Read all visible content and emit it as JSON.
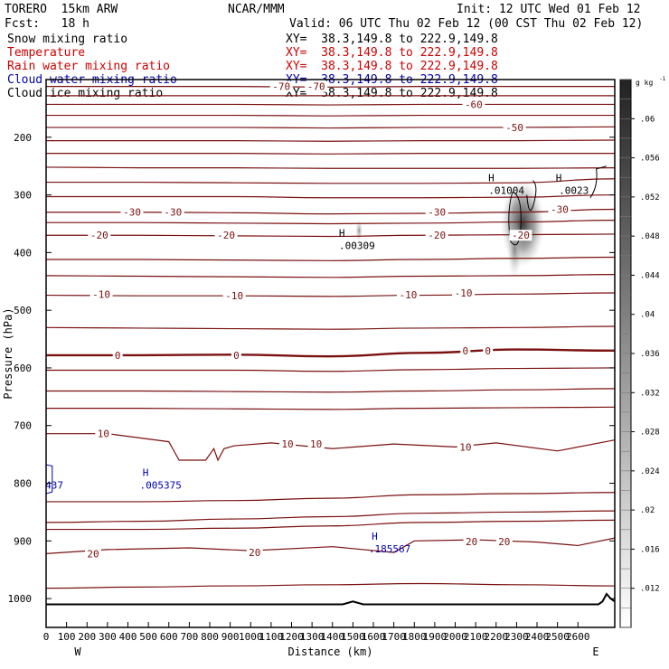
{
  "header": {
    "title": "TORERO  15km ARW",
    "org": "NCAR/MMM",
    "init": "Init: 12 UTC Wed 01 Feb 12",
    "fcst": "Fcst:   18 h",
    "valid": "Valid: 06 UTC Thu 02 Feb 12 (00 CST Thu 02 Feb 12)",
    "fields": [
      {
        "name": "Snow mixing ratio",
        "color": "#000000",
        "xy": "XY=  38.3,149.8 to 222.9,149.8"
      },
      {
        "name": "Temperature",
        "color": "#cc0000",
        "xy": "XY=  38.3,149.8 to 222.9,149.8"
      },
      {
        "name": "Rain water mixing ratio",
        "color": "#cc0000",
        "xy": "XY=  38.3,149.8 to 222.9,149.8"
      },
      {
        "name": "Cloud water mixing ratio",
        "color": "#0000aa",
        "xy": "XY=  38.3,149.8 to 222.9,149.8"
      },
      {
        "name": "Cloud ice mixing ratio",
        "color": "#000000",
        "xy": "XY=  38.3,149.8 to 222.9,149.8"
      }
    ]
  },
  "chart_data": {
    "type": "cross-section",
    "xlabel": "Distance (km)",
    "ylabel": "Pressure (hPa)",
    "xlim": [
      0,
      2780
    ],
    "ylim": [
      100,
      1050
    ],
    "x_ticks": [
      0,
      100,
      200,
      300,
      400,
      500,
      600,
      700,
      800,
      900,
      1000,
      1100,
      1200,
      1300,
      1400,
      1500,
      1600,
      1700,
      1800,
      1900,
      2000,
      2100,
      2200,
      2300,
      2400,
      2500,
      2600
    ],
    "y_ticks": [
      200,
      300,
      400,
      500,
      600,
      700,
      800,
      900,
      1000
    ],
    "x_end_labels": {
      "left": "W",
      "right": "E"
    },
    "colorbar": {
      "unit": "g kg",
      "unit_exp": "-1",
      "ticks": [
        ".06",
        ".056",
        ".052",
        ".048",
        ".044",
        ".04",
        ".036",
        ".032",
        ".028",
        ".024",
        ".02",
        ".016",
        ".012"
      ],
      "range": [
        0.008,
        0.064
      ]
    },
    "temperature_labels": [
      {
        "text": "-70",
        "x": 1150,
        "p": 112
      },
      {
        "text": "-70",
        "x": 1320,
        "p": 112
      },
      {
        "text": "-60",
        "x": 2090,
        "p": 143
      },
      {
        "text": "-50",
        "x": 2290,
        "p": 183
      },
      {
        "text": "-30",
        "x": 420,
        "p": 330
      },
      {
        "text": "-30",
        "x": 620,
        "p": 330
      },
      {
        "text": "-30",
        "x": 1910,
        "p": 330
      },
      {
        "text": "-30",
        "x": 2510,
        "p": 325
      },
      {
        "text": "-20",
        "x": 260,
        "p": 370
      },
      {
        "text": "-20",
        "x": 880,
        "p": 370
      },
      {
        "text": "-20",
        "x": 1910,
        "p": 370
      },
      {
        "text": "-20",
        "x": 2320,
        "p": 370
      },
      {
        "text": "-10",
        "x": 270,
        "p": 472
      },
      {
        "text": "-10",
        "x": 920,
        "p": 475
      },
      {
        "text": "-10",
        "x": 1770,
        "p": 473
      },
      {
        "text": "-10",
        "x": 2040,
        "p": 470
      },
      {
        "text": "0",
        "x": 350,
        "p": 578
      },
      {
        "text": "0",
        "x": 930,
        "p": 578
      },
      {
        "text": "0",
        "x": 2050,
        "p": 570
      },
      {
        "text": "0",
        "x": 2160,
        "p": 570
      },
      {
        "text": "10",
        "x": 280,
        "p": 714
      },
      {
        "text": "10",
        "x": 1180,
        "p": 732
      },
      {
        "text": "10",
        "x": 1320,
        "p": 732
      },
      {
        "text": "10",
        "x": 2050,
        "p": 737
      },
      {
        "text": "20",
        "x": 230,
        "p": 922
      },
      {
        "text": "20",
        "x": 1020,
        "p": 920
      },
      {
        "text": "20",
        "x": 2080,
        "p": 901
      },
      {
        "text": "20",
        "x": 2240,
        "p": 901
      }
    ],
    "maxima_labels": [
      {
        "text": ".00309",
        "x": 1520,
        "p": 388,
        "color": "#000000"
      },
      {
        "text": ".01004",
        "x": 2250,
        "p": 292,
        "color": "#000000"
      },
      {
        "text": ".0023",
        "x": 2580,
        "p": 292,
        "color": "#000000"
      },
      {
        "text": ".005375",
        "x": 560,
        "p": 803,
        "color": "#0000aa"
      },
      {
        "text": ".185567",
        "x": 1680,
        "p": 914,
        "color": "#0000aa"
      },
      {
        "text": "437",
        "x": 40,
        "p": 803,
        "color": "#0000aa"
      }
    ]
  }
}
